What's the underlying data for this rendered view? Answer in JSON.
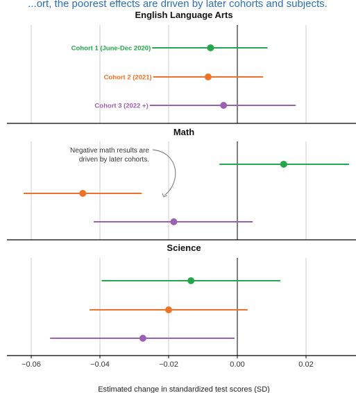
{
  "header_fragment": "...ort, the poorest effects are driven by later cohorts and subjects.",
  "chart_data": {
    "type": "forest",
    "xlabel": "Estimated change in standardized test scores (SD)",
    "xlim": [
      -0.066,
      0.034
    ],
    "xticks": [
      -0.06,
      -0.04,
      -0.02,
      0.0,
      0.02
    ],
    "xtick_labels": [
      "−0.06",
      "−0.04",
      "−0.02",
      "0.00",
      "0.02"
    ],
    "grid": true,
    "colors": {
      "cohort1": "#22a84a",
      "cohort2": "#f07226",
      "cohort3": "#9b5fb5"
    },
    "cohorts": [
      {
        "key": "cohort1",
        "label": "Cohort 1 (June-Dec 2020)"
      },
      {
        "key": "cohort2",
        "label": "Cohort 2 (2021)"
      },
      {
        "key": "cohort3",
        "label": "Cohort 3 (2022 +)"
      }
    ],
    "panels": [
      {
        "title": "English Language Arts",
        "estimates": [
          {
            "cohort": "cohort1",
            "est": -0.0078,
            "lo": -0.0248,
            "hi": 0.0088
          },
          {
            "cohort": "cohort2",
            "est": -0.0085,
            "lo": -0.0245,
            "hi": 0.0075
          },
          {
            "cohort": "cohort3",
            "est": -0.004,
            "lo": -0.0255,
            "hi": 0.017
          }
        ]
      },
      {
        "title": "Math",
        "estimates": [
          {
            "cohort": "cohort1",
            "est": 0.0135,
            "lo": -0.0052,
            "hi": 0.0325
          },
          {
            "cohort": "cohort2",
            "est": -0.045,
            "lo": -0.0622,
            "hi": -0.0278
          },
          {
            "cohort": "cohort3",
            "est": -0.0185,
            "lo": -0.0418,
            "hi": 0.0045
          }
        ],
        "annotation": "Negative math results are driven by later cohorts."
      },
      {
        "title": "Science",
        "estimates": [
          {
            "cohort": "cohort1",
            "est": -0.0135,
            "lo": -0.0395,
            "hi": 0.0125
          },
          {
            "cohort": "cohort2",
            "est": -0.02,
            "lo": -0.043,
            "hi": 0.003
          },
          {
            "cohort": "cohort3",
            "est": -0.0275,
            "lo": -0.0545,
            "hi": -0.0008
          }
        ]
      }
    ]
  }
}
